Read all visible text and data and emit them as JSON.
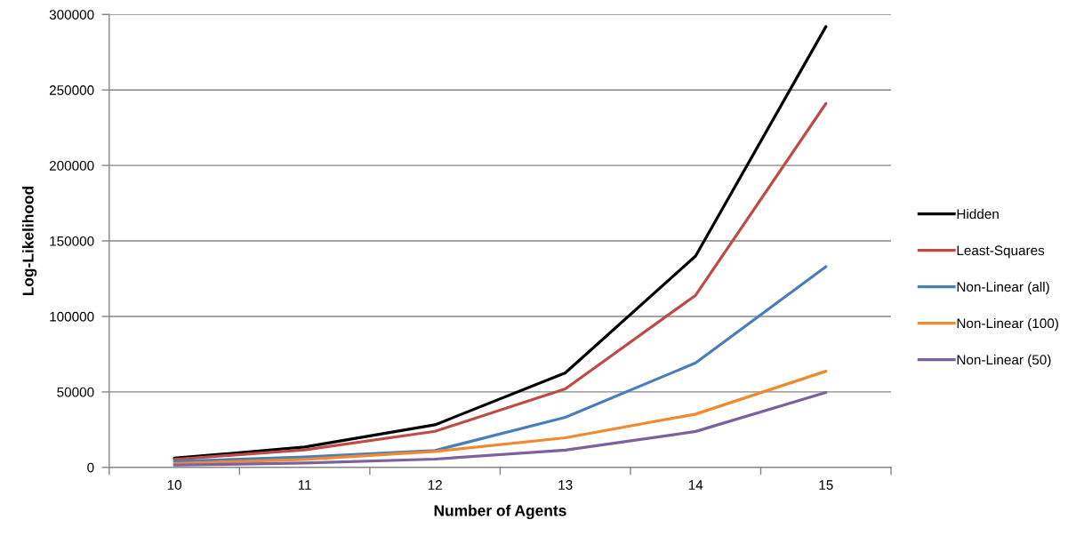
{
  "chart_data": {
    "type": "line",
    "xlabel": "Number of Agents",
    "ylabel": "Log-Likelihood",
    "categories": [
      "10",
      "11",
      "12",
      "13",
      "14",
      "15"
    ],
    "series": [
      {
        "name": "Hidden",
        "color": "#000000",
        "values": [
          6100,
          13500,
          28200,
          62600,
          140000,
          292000
        ]
      },
      {
        "name": "Least-Squares",
        "color": "#be4b48",
        "values": [
          5300,
          11600,
          23900,
          52000,
          114000,
          241000
        ]
      },
      {
        "name": "Non-Linear (all)",
        "color": "#4a7ebb",
        "values": [
          4000,
          6900,
          11200,
          33200,
          69200,
          133000
        ]
      },
      {
        "name": "Non-Linear (100)",
        "color": "#ef8a30",
        "values": [
          2500,
          5300,
          10600,
          19600,
          35300,
          63700
        ]
      },
      {
        "name": "Non-Linear (50)",
        "color": "#7d60a0",
        "values": [
          1500,
          2900,
          5500,
          11400,
          23800,
          49600
        ]
      }
    ],
    "ylim": [
      0,
      300000
    ],
    "yticks": [
      0,
      50000,
      100000,
      150000,
      200000,
      250000,
      300000
    ],
    "grid": "y",
    "legend": "right",
    "marker": "none",
    "line_style": "solid"
  }
}
